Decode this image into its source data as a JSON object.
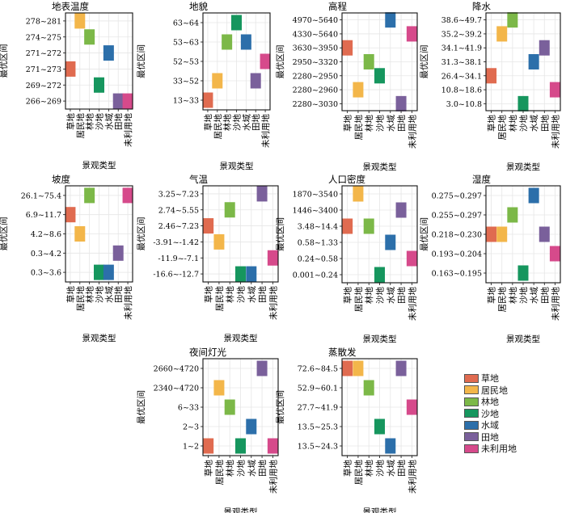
{
  "legend": {
    "items": [
      {
        "label": "草地",
        "color": "#E06B50"
      },
      {
        "label": "居民地",
        "color": "#F3B64A"
      },
      {
        "label": "林地",
        "color": "#7CB848"
      },
      {
        "label": "沙地",
        "color": "#16965E"
      },
      {
        "label": "水域",
        "color": "#2C6FAA"
      },
      {
        "label": "田地",
        "color": "#7A609B"
      },
      {
        "label": "未利用地",
        "color": "#D64A8B"
      }
    ]
  },
  "chart_data": [
    {
      "type": "heatmap",
      "title": "地表温度",
      "xlabel": "景观类型",
      "ylabel": "最优区间",
      "categories": [
        "草地",
        "居民地",
        "林地",
        "沙地",
        "水域",
        "田地",
        "未利用地"
      ],
      "y_categories": [
        "266~269",
        "269~272",
        "271~273",
        "271~272",
        "274~275",
        "278~281"
      ],
      "cells": [
        {
          "x": "居民地",
          "y": "278~281"
        },
        {
          "x": "林地",
          "y": "274~275"
        },
        {
          "x": "水域",
          "y": "271~272"
        },
        {
          "x": "草地",
          "y": "271~273"
        },
        {
          "x": "沙地",
          "y": "269~272"
        },
        {
          "x": "田地",
          "y": "266~269"
        },
        {
          "x": "未利用地",
          "y": "266~269"
        }
      ]
    },
    {
      "type": "heatmap",
      "title": "地貌",
      "xlabel": "景观类型",
      "ylabel": "最优区间",
      "categories": [
        "草地",
        "居民地",
        "林地",
        "沙地",
        "水域",
        "田地",
        "未利用地"
      ],
      "y_categories": [
        "13~33",
        "33~52",
        "52~53",
        "53~63",
        "63~64"
      ],
      "cells": [
        {
          "x": "沙地",
          "y": "63~64"
        },
        {
          "x": "林地",
          "y": "53~63"
        },
        {
          "x": "水域",
          "y": "53~63"
        },
        {
          "x": "未利用地",
          "y": "52~53"
        },
        {
          "x": "居民地",
          "y": "33~52"
        },
        {
          "x": "田地",
          "y": "33~52"
        },
        {
          "x": "草地",
          "y": "13~33"
        }
      ]
    },
    {
      "type": "heatmap",
      "title": "高程",
      "xlabel": "景观类型",
      "ylabel": "最优区间",
      "categories": [
        "草地",
        "居民地",
        "林地",
        "沙地",
        "水域",
        "田地",
        "未利用地"
      ],
      "y_categories": [
        "2280~3030",
        "2280~2960",
        "2280~2950",
        "2950~3320",
        "3630~3950",
        "4330~5640",
        "4970~5640"
      ],
      "cells": [
        {
          "x": "水域",
          "y": "4970~5640"
        },
        {
          "x": "未利用地",
          "y": "4330~5640"
        },
        {
          "x": "草地",
          "y": "3630~3950"
        },
        {
          "x": "林地",
          "y": "2950~3320"
        },
        {
          "x": "沙地",
          "y": "2280~2950"
        },
        {
          "x": "居民地",
          "y": "2280~2960"
        },
        {
          "x": "田地",
          "y": "2280~3030"
        }
      ]
    },
    {
      "type": "heatmap",
      "title": "降水",
      "xlabel": "景观类型",
      "ylabel": "最优区间",
      "categories": [
        "草地",
        "居民地",
        "林地",
        "沙地",
        "水域",
        "田地",
        "未利用地"
      ],
      "y_categories": [
        "3.0~10.8",
        "10.8~18.6",
        "26.4~34.1",
        "31.3~38.1",
        "34.1~41.9",
        "35.2~39.2",
        "38.6~49.7"
      ],
      "cells": [
        {
          "x": "林地",
          "y": "38.6~49.7"
        },
        {
          "x": "居民地",
          "y": "35.2~39.2"
        },
        {
          "x": "田地",
          "y": "34.1~41.9"
        },
        {
          "x": "水域",
          "y": "31.3~38.1"
        },
        {
          "x": "草地",
          "y": "26.4~34.1"
        },
        {
          "x": "未利用地",
          "y": "10.8~18.6"
        },
        {
          "x": "沙地",
          "y": "3.0~10.8"
        }
      ]
    },
    {
      "type": "heatmap",
      "title": "坡度",
      "xlabel": "景观类型",
      "ylabel": "最优区间",
      "categories": [
        "草地",
        "居民地",
        "林地",
        "沙地",
        "水域",
        "田地",
        "未利用地"
      ],
      "y_categories": [
        "0.3~3.6",
        "0.3~4.2",
        "4.2~8.6",
        "6.9~11.7",
        "26.1~75.4"
      ],
      "cells": [
        {
          "x": "林地",
          "y": "26.1~75.4"
        },
        {
          "x": "未利用地",
          "y": "26.1~75.4"
        },
        {
          "x": "草地",
          "y": "6.9~11.7"
        },
        {
          "x": "居民地",
          "y": "4.2~8.6"
        },
        {
          "x": "田地",
          "y": "0.3~4.2"
        },
        {
          "x": "沙地",
          "y": "0.3~3.6"
        },
        {
          "x": "水域",
          "y": "0.3~3.6"
        }
      ]
    },
    {
      "type": "heatmap",
      "title": "气温",
      "xlabel": "景观类型",
      "ylabel": "最优区间",
      "categories": [
        "草地",
        "居民地",
        "林地",
        "沙地",
        "水域",
        "田地",
        "未利用地"
      ],
      "y_categories": [
        "-16.6~-12.7",
        "-11.9~-7.1",
        "-3.91~-1.42",
        "2.46~7.23",
        "2.74~5.55",
        "3.25~7.23"
      ],
      "cells": [
        {
          "x": "田地",
          "y": "3.25~7.23"
        },
        {
          "x": "林地",
          "y": "2.74~5.55"
        },
        {
          "x": "草地",
          "y": "2.46~7.23"
        },
        {
          "x": "居民地",
          "y": "-3.91~-1.42"
        },
        {
          "x": "未利用地",
          "y": "-11.9~-7.1"
        },
        {
          "x": "沙地",
          "y": "-16.6~-12.7"
        },
        {
          "x": "水域",
          "y": "-16.6~-12.7"
        }
      ]
    },
    {
      "type": "heatmap",
      "title": "人口密度",
      "xlabel": "景观类型",
      "ylabel": "最优区间",
      "categories": [
        "草地",
        "居民地",
        "林地",
        "沙地",
        "水域",
        "田地",
        "未利用地"
      ],
      "y_categories": [
        "0.001~0.24",
        "0.24~0.58",
        "0.58~1.33",
        "3.48~14.4",
        "1446~3400",
        "1870~3540"
      ],
      "cells": [
        {
          "x": "居民地",
          "y": "1870~3540"
        },
        {
          "x": "田地",
          "y": "1446~3400"
        },
        {
          "x": "草地",
          "y": "3.48~14.4"
        },
        {
          "x": "林地",
          "y": "3.48~14.4"
        },
        {
          "x": "水域",
          "y": "0.58~1.33"
        },
        {
          "x": "未利用地",
          "y": "0.24~0.58"
        },
        {
          "x": "沙地",
          "y": "0.001~0.24"
        }
      ]
    },
    {
      "type": "heatmap",
      "title": "湿度",
      "xlabel": "景观类型",
      "ylabel": "最优区间",
      "categories": [
        "草地",
        "居民地",
        "林地",
        "沙地",
        "水域",
        "田地",
        "未利用地"
      ],
      "y_categories": [
        "0.163~0.195",
        "0.193~0.204",
        "0.218~0.230",
        "0.255~0.297",
        "0.275~0.297"
      ],
      "cells": [
        {
          "x": "水域",
          "y": "0.275~0.297"
        },
        {
          "x": "林地",
          "y": "0.255~0.297"
        },
        {
          "x": "草地",
          "y": "0.218~0.230"
        },
        {
          "x": "居民地",
          "y": "0.218~0.230"
        },
        {
          "x": "田地",
          "y": "0.218~0.230"
        },
        {
          "x": "未利用地",
          "y": "0.193~0.204"
        },
        {
          "x": "沙地",
          "y": "0.163~0.195"
        }
      ]
    },
    {
      "type": "heatmap",
      "title": "夜间灯光",
      "xlabel": "景观类型",
      "ylabel": "最优区间",
      "categories": [
        "草地",
        "居民地",
        "林地",
        "沙地",
        "水域",
        "田地",
        "未利用地"
      ],
      "y_categories": [
        "1~2",
        "2~3",
        "6~33",
        "2340~4720",
        "2660~4720"
      ],
      "cells": [
        {
          "x": "田地",
          "y": "2660~4720"
        },
        {
          "x": "居民地",
          "y": "2340~4720"
        },
        {
          "x": "林地",
          "y": "6~33"
        },
        {
          "x": "水域",
          "y": "2~3"
        },
        {
          "x": "草地",
          "y": "1~2"
        },
        {
          "x": "沙地",
          "y": "1~2"
        },
        {
          "x": "未利用地",
          "y": "1~2"
        }
      ]
    },
    {
      "type": "heatmap",
      "title": "蒸散发",
      "xlabel": "景观类型",
      "ylabel": "最优区间",
      "categories": [
        "草地",
        "居民地",
        "林地",
        "沙地",
        "水域",
        "田地",
        "未利用地"
      ],
      "y_categories": [
        "13.5~24.3",
        "13.5~25.3",
        "27.7~41.9",
        "52.9~60.1",
        "72.6~84.5"
      ],
      "cells": [
        {
          "x": "草地",
          "y": "72.6~84.5"
        },
        {
          "x": "居民地",
          "y": "72.6~84.5"
        },
        {
          "x": "田地",
          "y": "72.6~84.5"
        },
        {
          "x": "林地",
          "y": "52.9~60.1"
        },
        {
          "x": "未利用地",
          "y": "27.7~41.9"
        },
        {
          "x": "沙地",
          "y": "13.5~25.3"
        },
        {
          "x": "水域",
          "y": "13.5~24.3"
        }
      ]
    }
  ]
}
